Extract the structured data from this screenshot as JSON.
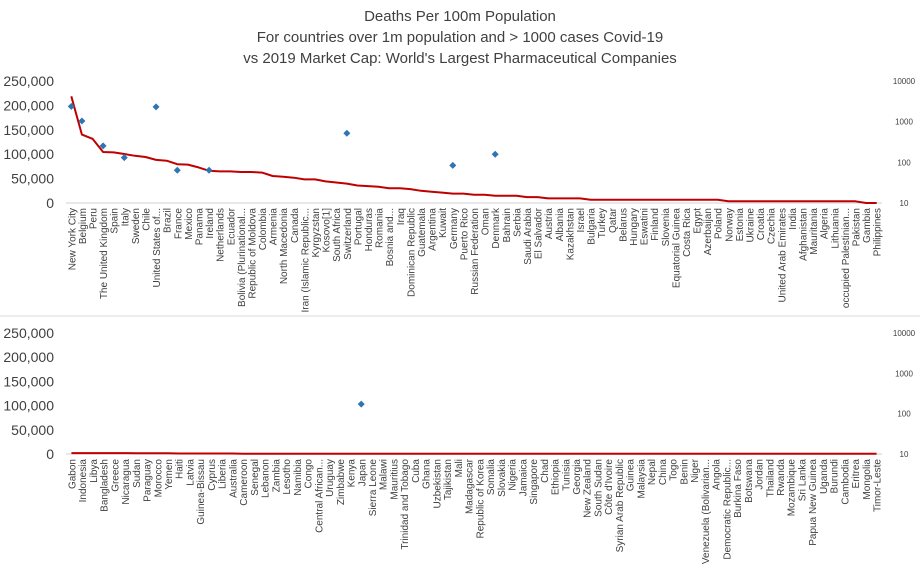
{
  "title_lines": [
    "Deaths Per 100m Population",
    "For countries over 1m population and > 1000 cases Covid-19",
    "vs 2019 Market Cap: World's Largest Pharmaceutical Companies"
  ],
  "colors": {
    "line": "#c00000",
    "marker": "#2e75b6",
    "axis_text": "#404040",
    "divider": "#d9d9d9"
  },
  "chart_data": [
    {
      "type": "line",
      "panel": "top",
      "x_type": "category",
      "categories": [
        "New York City",
        "Belgium",
        "Peru",
        "The United Kingdom",
        "Spain",
        "Italy",
        "Sweden",
        "Chile",
        "United States of...",
        "Brazil",
        "France",
        "Mexico",
        "Panama",
        "Ireland",
        "Netherlands",
        "Ecuador",
        "Bolivia (Plurinational...",
        "Republic of Moldova",
        "Colombia",
        "Armenia",
        "North Macedonia",
        "Canada",
        "Iran (Islamic Republic...",
        "Kyrgyzstan",
        "Kosovo[1]",
        "South Africa",
        "Switzerland",
        "Portugal",
        "Honduras",
        "Romania",
        "Bosnia and...",
        "Iraq",
        "Dominican Republic",
        "Guatemala",
        "Argentina",
        "Kuwait",
        "Germany",
        "Puerto Rico",
        "Russian Federation",
        "Oman",
        "Denmark",
        "Bahrain",
        "Serbia",
        "Saudi Arabia",
        "El Salvador",
        "Austria",
        "Albania",
        "Kazakhstan",
        "Israel",
        "Bulgaria",
        "Turkey",
        "Qatar",
        "Belarus",
        "Hungary",
        "Eswatini",
        "Finland",
        "Slovenia",
        "Equatorial Guinea",
        "Costa Rica",
        "Egypt",
        "Azerbaijan",
        "Poland",
        "Norway",
        "Estonia",
        "Ukraine",
        "Croatia",
        "Czechia",
        "United Arab Emirates",
        "India",
        "Afghanistan",
        "Mauritania",
        "Algeria",
        "Lithuania",
        "occupied Palestinian...",
        "Pakistan",
        "Gambia",
        "Philippines"
      ],
      "series": [
        {
          "axis": "secondary",
          "style": "line",
          "values": [
            4200,
            480,
            380,
            180,
            175,
            160,
            145,
            135,
            115,
            110,
            90,
            88,
            75,
            62,
            60,
            60,
            58,
            58,
            56,
            46,
            44,
            42,
            38,
            38,
            34,
            32,
            30,
            27,
            26,
            25,
            23,
            23,
            22,
            20,
            19,
            18,
            17,
            17,
            16,
            16,
            15,
            15,
            15,
            14,
            14,
            13,
            13,
            13,
            13,
            12,
            12,
            12,
            12,
            12,
            12,
            12,
            12,
            12,
            12,
            12,
            12,
            12,
            11,
            11,
            11,
            11,
            11,
            11,
            11,
            11,
            11,
            11,
            11,
            11,
            11,
            10,
            10
          ]
        },
        {
          "axis": "primary",
          "style": "markers",
          "points": [
            {
              "category": "New York City",
              "value": 198000
            },
            {
              "category": "Belgium",
              "value": 168000
            },
            {
              "category": "The United Kingdom",
              "value": 117000
            },
            {
              "category": "Italy",
              "value": 93000
            },
            {
              "category": "United States of...",
              "value": 197000
            },
            {
              "category": "France",
              "value": 67000
            },
            {
              "category": "Ireland",
              "value": 67000
            },
            {
              "category": "Switzerland",
              "value": 143000
            },
            {
              "category": "Germany",
              "value": 77000
            },
            {
              "category": "Denmark",
              "value": 100000
            }
          ]
        }
      ],
      "ylim": [
        0,
        250000
      ],
      "yticks": [
        "0",
        "50,000",
        "100,000",
        "150,000",
        "200,000",
        "250,000"
      ],
      "y2_scale": "log",
      "y2lim": [
        10,
        10000
      ],
      "y2ticks": [
        "10",
        "100",
        "1000",
        "10000"
      ]
    },
    {
      "type": "line",
      "panel": "bottom",
      "x_type": "category",
      "categories": [
        "Gabon",
        "Indonesia",
        "Libya",
        "Bangladesh",
        "Greece",
        "Nicaragua",
        "Sudan",
        "Paraguay",
        "Morocco",
        "Yemen",
        "Haiti",
        "Latvia",
        "Guinea-Bissau",
        "Cyprus",
        "Liberia",
        "Australia",
        "Cameroon",
        "Senegal",
        "Lebanon",
        "Zambia",
        "Lesotho",
        "Namibia",
        "Congo",
        "Central African...",
        "Uruguay",
        "Zimbabwe",
        "Kenya",
        "Japan",
        "Sierra Leone",
        "Malawi",
        "Mauritius",
        "Trinidad and Tobago",
        "Cuba",
        "Ghana",
        "Uzbekistan",
        "Tajikistan",
        "Mali",
        "Madagascar",
        "Republic of Korea",
        "Somalia",
        "Slovakia",
        "Nigeria",
        "Jamaica",
        "Singapore",
        "Chad",
        "Ethiopia",
        "Tunisia",
        "Georgia",
        "New Zealand",
        "South Sudan",
        "Côte d'Ivoire",
        "Syrian Arab Republic",
        "Guinea",
        "Malaysia",
        "Nepal",
        "China",
        "Togo",
        "Benin",
        "Niger",
        "Venezuela (Bolivarian...",
        "Angola",
        "Democratic Republic...",
        "Burkina Faso",
        "Botswana",
        "Jordan",
        "Thailand",
        "Rwanda",
        "Mozambique",
        "Sri Lanka",
        "Papua New Guinea",
        "Uganda",
        "Burundi",
        "Cambodia",
        "Eritrea",
        "Mongolia",
        "Timor-Leste"
      ],
      "series": [
        {
          "axis": "secondary",
          "style": "line",
          "values": [
            10.5,
            10.5,
            10.5,
            10.5,
            10.5,
            10.5,
            10.4,
            10.4,
            10.4,
            10.4,
            10.3,
            10.3,
            10.3,
            10.3,
            10.3,
            10.3,
            10.2,
            10.2,
            10.2,
            10.2,
            10.2,
            10.2,
            10.2,
            10.2,
            10.2,
            10.1,
            10.1,
            10.1,
            10.1,
            10.1,
            10.1,
            10.1,
            10.1,
            10.1,
            10.1,
            10.1,
            10.1,
            10.1,
            10.1,
            10.1,
            10.1,
            10.1,
            10.1,
            10.1,
            10.1,
            10.1,
            10.1,
            10.1,
            10.1,
            10.1,
            10.1,
            10.1,
            10.1,
            10.1,
            10.1,
            10.1,
            10.1,
            10.1,
            10.1,
            10.1,
            10.1,
            10.1,
            10.1,
            10.1,
            10.1,
            10.1,
            10.1,
            10.1,
            10.1,
            10.1,
            10.1,
            10.1,
            10.1,
            10.1,
            10.1,
            10.1
          ]
        },
        {
          "axis": "primary",
          "style": "markers",
          "points": [
            {
              "category": "Japan",
              "value": 103000
            }
          ]
        }
      ],
      "ylim": [
        0,
        250000
      ],
      "yticks": [
        "0",
        "50,000",
        "100,000",
        "150,000",
        "200,000",
        "250,000"
      ],
      "y2_scale": "log",
      "y2lim": [
        10,
        10000
      ],
      "y2ticks": [
        "10",
        "100",
        "1000",
        "10000"
      ]
    }
  ]
}
